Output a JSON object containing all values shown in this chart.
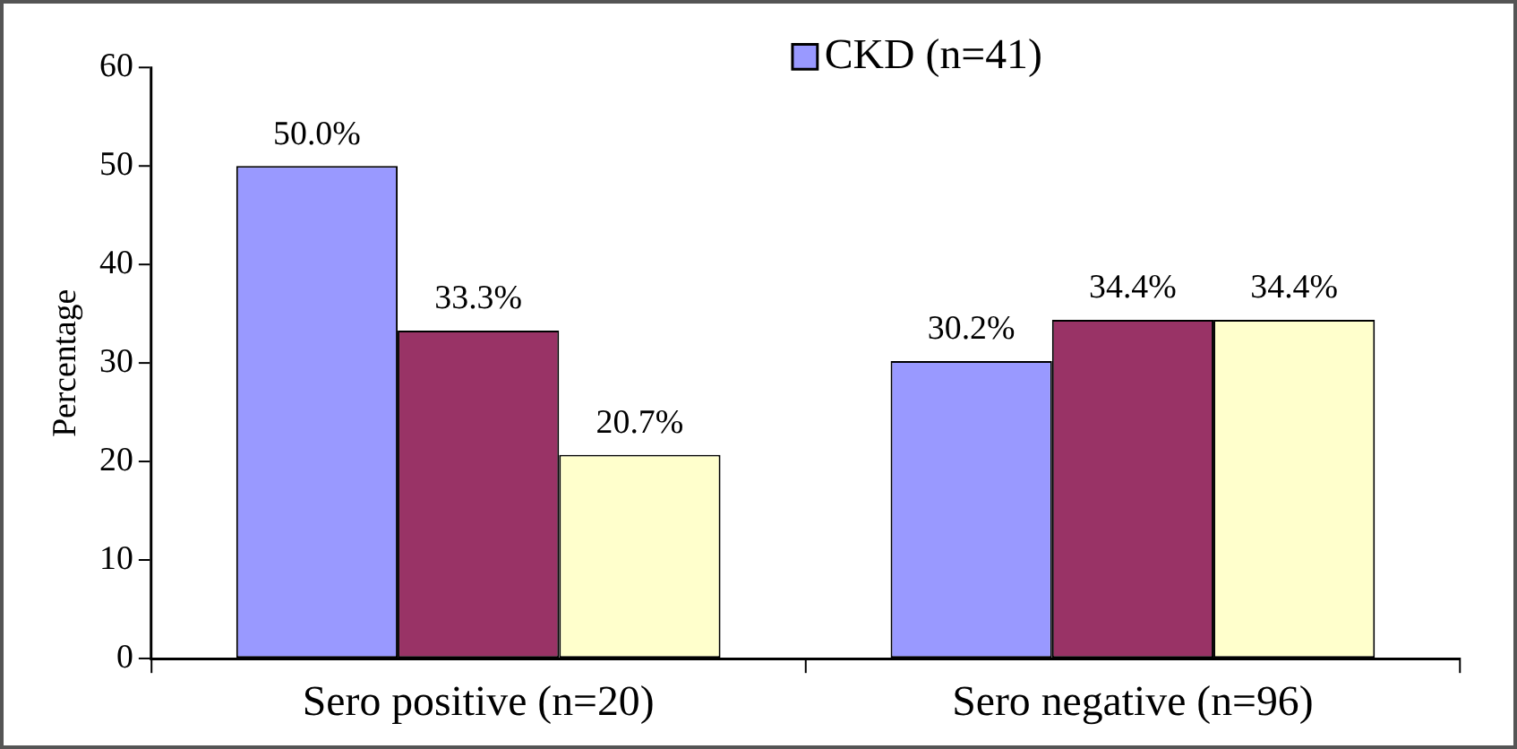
{
  "chart_data": {
    "type": "bar",
    "ylabel": "Percentage",
    "categories": [
      "Sero positive (n=20)",
      "Sero negative (n=96)"
    ],
    "series": [
      {
        "name": "CKD (n=41)",
        "color": "#9999ff",
        "values": [
          50.0,
          30.2
        ],
        "value_labels": [
          "50.0%",
          "30.2%"
        ]
      },
      {
        "color": "#993366",
        "values": [
          33.3,
          34.4
        ],
        "value_labels": [
          "33.3%",
          "34.4%"
        ]
      },
      {
        "color": "#ffffcc",
        "values": [
          20.7,
          34.4
        ],
        "value_labels": [
          "20.7%",
          "34.4%"
        ]
      }
    ],
    "ylim": [
      0,
      60
    ],
    "yticks": [
      0,
      10,
      20,
      30,
      40,
      50,
      60
    ],
    "grid": false,
    "legend": "top right"
  }
}
